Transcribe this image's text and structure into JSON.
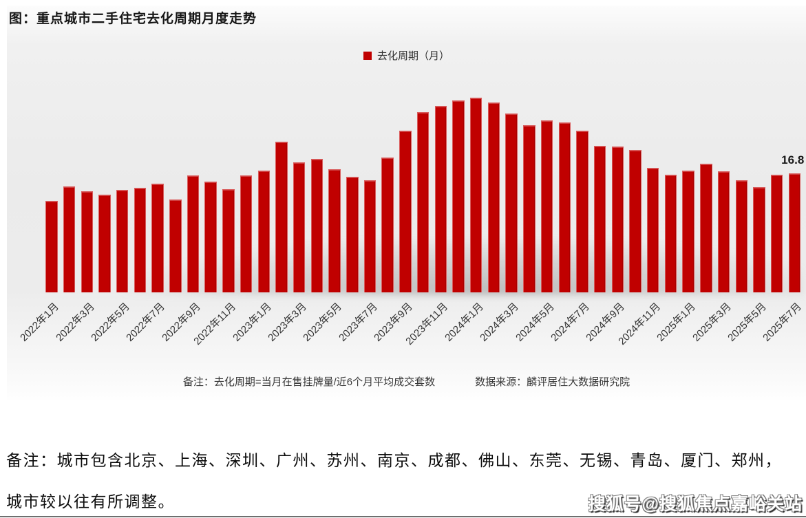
{
  "title": "图：重点城市二手住宅去化周期月度走势",
  "legend": {
    "label": "去化周期（月）",
    "color": "#c00000"
  },
  "chart_data": {
    "type": "bar",
    "title": "重点城市二手住宅去化周期月度走势",
    "series_name": "去化周期（月）",
    "ylabel": "去化周期（月）",
    "xlabel": "",
    "ylim": [
      0,
      30
    ],
    "grid": false,
    "legend_position": "top-center",
    "bar_color": "#c00000",
    "x_tick_every": 2,
    "categories": [
      "2022年1月",
      "2022年2月",
      "2022年3月",
      "2022年4月",
      "2022年5月",
      "2022年6月",
      "2022年7月",
      "2022年8月",
      "2022年9月",
      "2022年10月",
      "2022年11月",
      "2022年12月",
      "2023年1月",
      "2023年2月",
      "2023年3月",
      "2023年4月",
      "2023年5月",
      "2023年6月",
      "2023年7月",
      "2023年8月",
      "2023年9月",
      "2023年10月",
      "2023年11月",
      "2023年12月",
      "2024年1月",
      "2024年2月",
      "2024年3月",
      "2024年4月",
      "2024年5月",
      "2024年6月",
      "2024年7月",
      "2024年8月",
      "2024年9月",
      "2024年10月",
      "2024年11月",
      "2024年12月",
      "2025年1月",
      "2025年2月",
      "2025年3月",
      "2025年4月",
      "2025年5月",
      "2025年6月",
      "2025年7月"
    ],
    "values": [
      12.9,
      15.0,
      14.3,
      13.8,
      14.5,
      14.8,
      15.3,
      13.1,
      16.5,
      15.6,
      14.6,
      16.5,
      17.2,
      21.3,
      18.4,
      18.8,
      17.4,
      16.3,
      15.8,
      19.0,
      22.8,
      25.4,
      26.3,
      27.1,
      27.5,
      26.8,
      25.2,
      23.6,
      24.3,
      24.0,
      22.8,
      20.7,
      20.6,
      20.1,
      17.6,
      16.6,
      17.2,
      18.2,
      17.1,
      15.8,
      14.9,
      16.6,
      16.8
    ],
    "annotation": {
      "category": "2025年7月",
      "text": "16.8"
    }
  },
  "footnote": {
    "note": "备注：去化周期=当月在售挂牌量/近6个月平均成交套数",
    "source": "数据来源：麟评居住大数据研究院"
  },
  "remark": {
    "line1": "备注：城市包含北京、上海、深圳、广州、苏州、南京、成都、佛山、东莞、无锡、青岛、厦门、郑州，",
    "line2": "城市较以往有所调整。"
  },
  "watermark": "搜狐号@搜狐焦点嘉峪关站"
}
